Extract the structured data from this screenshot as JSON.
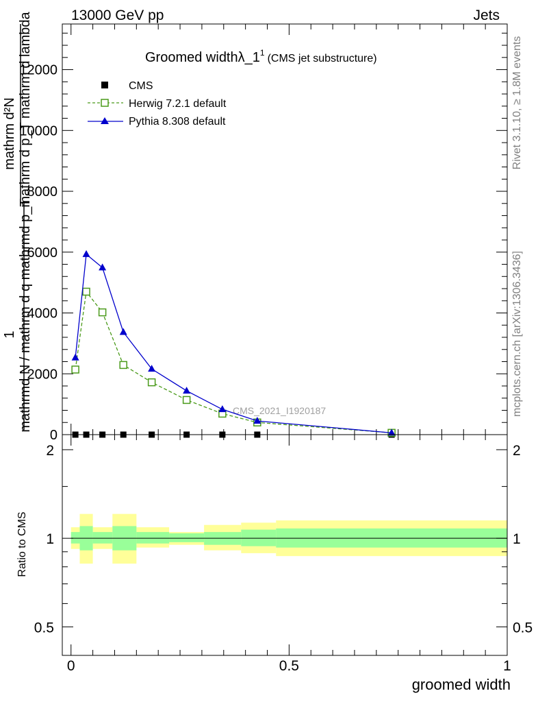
{
  "header": {
    "energy_label": "13000 GeV pp",
    "category_label": "Jets"
  },
  "side_labels": {
    "rivet": "Rivet 3.1.10, ≥ 1.8M events",
    "mcplots": "mcplots.cern.ch [arXiv:1306.3436]"
  },
  "watermark": "CMS_2021_I1920187",
  "main_ylabel": {
    "numerator": "mathrm d²N",
    "denominator": "mathrm d p_T mathrm d lambda",
    "prefix_top": "1",
    "prefix_bottom": "mathrmd N / mathrm d q mathrmd p_T"
  },
  "ratio_ylabel": "Ratio to CMS",
  "xlabel": "groomed width",
  "chart_data": [
    {
      "type": "line",
      "title": "Groomed widthλ_1",
      "title_sup": "1",
      "title_note": "(CMS jet substructure)",
      "xlim": [
        -0.02,
        1.0
      ],
      "ylim": [
        0,
        13500
      ],
      "yticks": [
        {
          "value": 0,
          "label": "0"
        },
        {
          "value": 2000,
          "label": "2000"
        },
        {
          "value": 4000,
          "label": "4000"
        },
        {
          "value": 6000,
          "label": "6000"
        },
        {
          "value": 8000,
          "label": "8000"
        },
        {
          "value": 10000,
          "label": "10000"
        },
        {
          "value": 12000,
          "label": "12000"
        }
      ],
      "legend_position": "top-left",
      "series": [
        {
          "name": "CMS",
          "color": "#000000",
          "marker": "square-filled",
          "x": [
            0.01,
            0.035,
            0.072,
            0.12,
            0.185,
            0.265,
            0.347,
            0.427,
            0.735
          ],
          "y": [
            0,
            0,
            0,
            0,
            0,
            0,
            0,
            0,
            0
          ]
        },
        {
          "name": "Herwig 7.2.1 default",
          "color": "#4a9a1a",
          "marker": "square-open",
          "dashed": true,
          "x": [
            0.01,
            0.035,
            0.072,
            0.12,
            0.185,
            0.265,
            0.347,
            0.427,
            0.735
          ],
          "y": [
            2140,
            4700,
            4020,
            2290,
            1720,
            1140,
            690,
            400,
            60
          ]
        },
        {
          "name": "Pythia 8.308 default",
          "color": "#0000cc",
          "marker": "triangle-filled",
          "dashed": false,
          "x": [
            0.01,
            0.035,
            0.072,
            0.12,
            0.185,
            0.265,
            0.347,
            0.427,
            0.735
          ],
          "y": [
            2530,
            5930,
            5490,
            3370,
            2160,
            1440,
            830,
            450,
            60
          ]
        }
      ]
    },
    {
      "type": "area",
      "ylabel": "Ratio to CMS",
      "xlabel": "groomed width",
      "xlim": [
        -0.02,
        1.0
      ],
      "ylim": [
        0.4,
        2.25
      ],
      "log_y": true,
      "yticks": [
        {
          "value": 0.5,
          "label": "0.5"
        },
        {
          "value": 1,
          "label": "1"
        },
        {
          "value": 2,
          "label": "2"
        }
      ],
      "xticks": [
        {
          "value": 0,
          "label": "0"
        },
        {
          "value": 0.5,
          "label": "0.5"
        },
        {
          "value": 1,
          "label": "1"
        }
      ],
      "reference_line": 1,
      "bins": [
        {
          "lo": 0.0,
          "hi": 0.02,
          "stat": [
            0.96,
            1.05
          ],
          "total": [
            0.92,
            1.09
          ]
        },
        {
          "lo": 0.02,
          "hi": 0.05,
          "stat": [
            0.91,
            1.1
          ],
          "total": [
            0.82,
            1.21
          ]
        },
        {
          "lo": 0.05,
          "hi": 0.095,
          "stat": [
            0.96,
            1.05
          ],
          "total": [
            0.92,
            1.09
          ]
        },
        {
          "lo": 0.095,
          "hi": 0.15,
          "stat": [
            0.91,
            1.1
          ],
          "total": [
            0.82,
            1.21
          ]
        },
        {
          "lo": 0.15,
          "hi": 0.225,
          "stat": [
            0.96,
            1.05
          ],
          "total": [
            0.93,
            1.09
          ]
        },
        {
          "lo": 0.225,
          "hi": 0.305,
          "stat": [
            0.97,
            1.04
          ],
          "total": [
            0.95,
            1.05
          ]
        },
        {
          "lo": 0.305,
          "hi": 0.39,
          "stat": [
            0.95,
            1.05
          ],
          "total": [
            0.91,
            1.11
          ]
        },
        {
          "lo": 0.39,
          "hi": 0.47,
          "stat": [
            0.94,
            1.07
          ],
          "total": [
            0.89,
            1.13
          ]
        },
        {
          "lo": 0.47,
          "hi": 1.0,
          "stat": [
            0.93,
            1.08
          ],
          "total": [
            0.87,
            1.15
          ]
        }
      ]
    }
  ]
}
